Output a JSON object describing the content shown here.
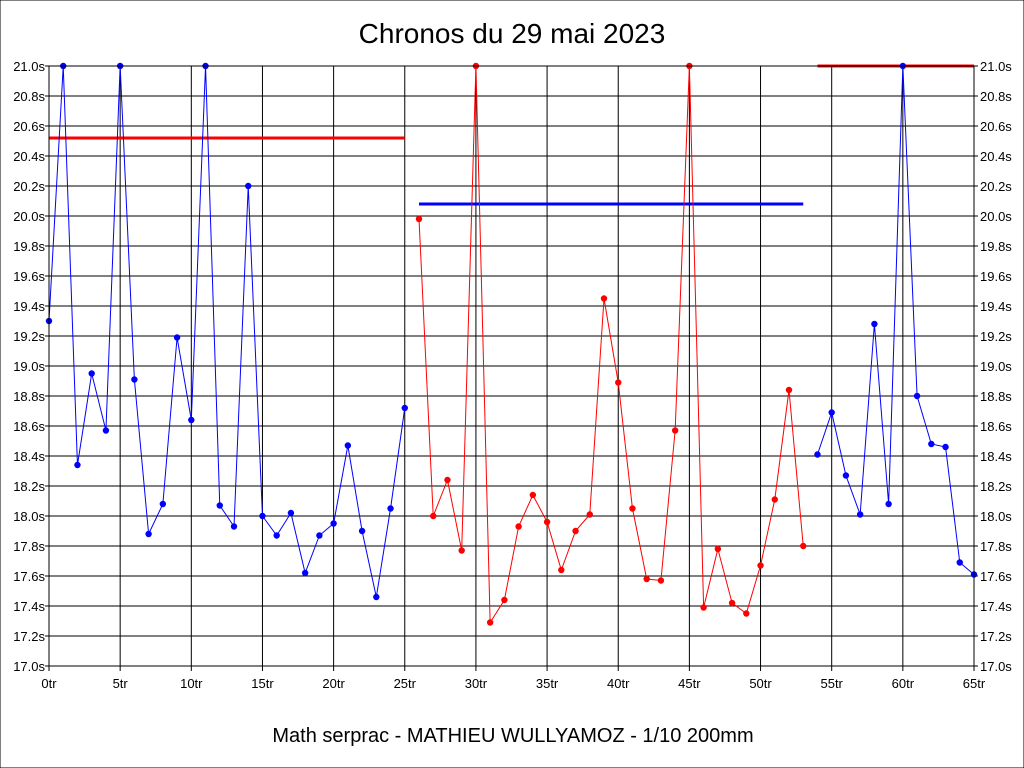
{
  "chart_data": {
    "type": "line",
    "title": "Chronos du 29 mai 2023",
    "footer": "Math serprac - MATHIEU WULLYAMOZ - 1/10 200mm",
    "xlabel": "",
    "ylabel": "",
    "xlim": [
      0,
      65
    ],
    "ylim": [
      17.0,
      21.0
    ],
    "grid": true,
    "x_ticks": [
      0,
      5,
      10,
      15,
      20,
      25,
      30,
      35,
      40,
      45,
      50,
      55,
      60,
      65
    ],
    "x_tick_labels": [
      "0tr",
      "5tr",
      "10tr",
      "15tr",
      "20tr",
      "25tr",
      "30tr",
      "35tr",
      "40tr",
      "45tr",
      "50tr",
      "55tr",
      "60tr",
      "65tr"
    ],
    "y_ticks": [
      17.0,
      17.2,
      17.4,
      17.6,
      17.8,
      18.0,
      18.2,
      18.4,
      18.6,
      18.8,
      19.0,
      19.2,
      19.4,
      19.6,
      19.8,
      20.0,
      20.2,
      20.4,
      20.6,
      20.8,
      21.0
    ],
    "y_tick_labels": [
      "17.0s",
      "17.2s",
      "17.4s",
      "17.6s",
      "17.8s",
      "18.0s",
      "18.2s",
      "18.4s",
      "18.6s",
      "18.8s",
      "19.0s",
      "19.2s",
      "19.4s",
      "19.6s",
      "19.8s",
      "20.0s",
      "20.2s",
      "20.4s",
      "20.6s",
      "20.8s",
      "21.0s"
    ],
    "series": [
      {
        "color": "#0000ff",
        "x": [
          0,
          1,
          2,
          3,
          4,
          5,
          6,
          7,
          8,
          9,
          10,
          11,
          12,
          13,
          14,
          15,
          16,
          17,
          18,
          19,
          20,
          21,
          22,
          23,
          24,
          25
        ],
        "values": [
          19.3,
          21.0,
          18.34,
          18.95,
          18.57,
          21.0,
          18.91,
          17.88,
          18.08,
          19.19,
          18.64,
          21.0,
          18.07,
          17.93,
          20.2,
          18.0,
          17.87,
          18.02,
          17.62,
          17.87,
          17.95,
          18.47,
          17.9,
          17.46,
          18.05,
          18.72
        ]
      },
      {
        "color": "#ff0000",
        "x": [
          26,
          27,
          28,
          29,
          30,
          31,
          32,
          33,
          34,
          35,
          36,
          37,
          38,
          39,
          40,
          41,
          42,
          43,
          44,
          45,
          46,
          47,
          48,
          49,
          50,
          51,
          52,
          53
        ],
        "values": [
          19.98,
          18.0,
          18.24,
          17.77,
          21.0,
          17.29,
          17.44,
          17.93,
          18.14,
          17.96,
          17.64,
          17.9,
          18.01,
          19.45,
          18.89,
          18.05,
          17.58,
          17.57,
          18.57,
          21.0,
          17.39,
          17.78,
          17.42,
          17.35,
          17.67,
          18.11,
          18.84,
          17.8
        ]
      },
      {
        "color": "#0000ff",
        "x": [
          54,
          55,
          56,
          57,
          58,
          59,
          60,
          61,
          62,
          63,
          64,
          65
        ],
        "values": [
          18.41,
          18.69,
          18.27,
          18.01,
          19.28,
          18.08,
          21.0,
          18.8,
          18.48,
          18.46,
          17.69,
          17.61
        ]
      }
    ],
    "average_lines": [
      {
        "color": "#ff0000",
        "x_start": 0,
        "x_end": 25,
        "value": 20.52
      },
      {
        "color": "#0000ff",
        "x_start": 26,
        "x_end": 53,
        "value": 20.08
      },
      {
        "color": "#ff0000",
        "x_start": 54,
        "x_end": 65,
        "value": 21.0
      }
    ]
  }
}
